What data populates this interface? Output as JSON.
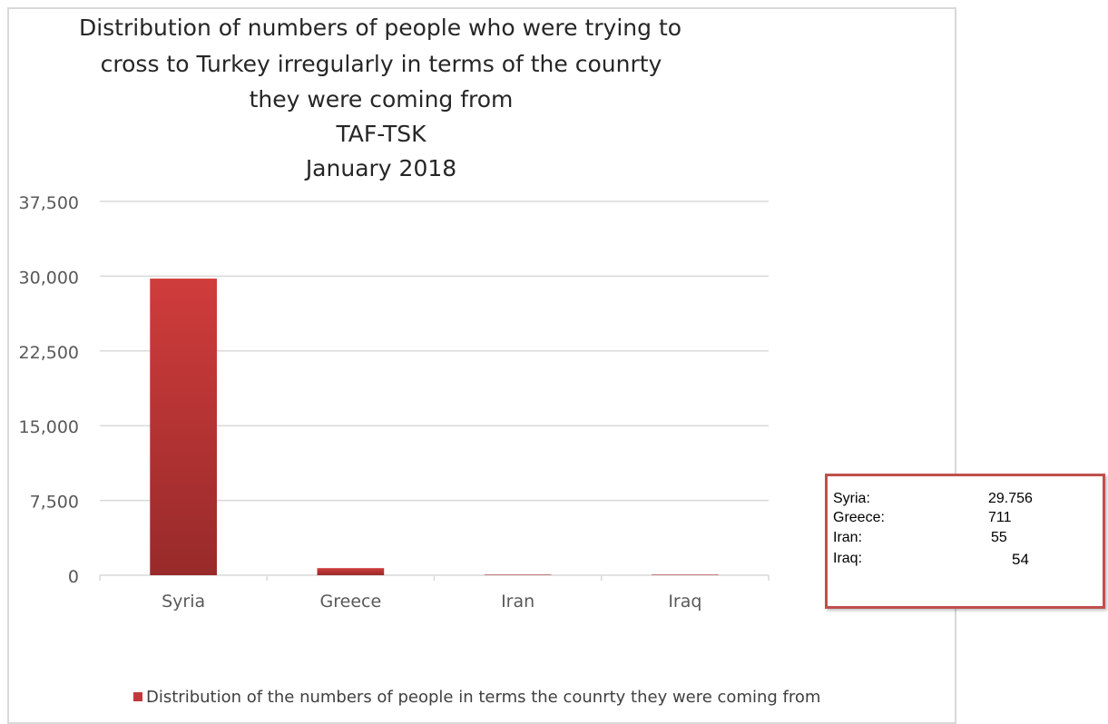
{
  "chart_data": {
    "type": "bar",
    "title_lines": [
      "Distribution of numbers of people who were trying to",
      "cross to Turkey irregularly in terms of the counrty",
      "they were coming from",
      "TAF-TSK",
      "January 2018"
    ],
    "categories": [
      "Syria",
      "Greece",
      "Iran",
      "Iraq"
    ],
    "series": [
      {
        "name": "Distribution of the numbers of people in terms the counrty they were coming from",
        "values": [
          29756,
          711,
          55,
          54
        ]
      }
    ],
    "ylim": [
      0,
      37500
    ],
    "yticks": [
      "0",
      "7,500",
      "15,000",
      "22,500",
      "30,000",
      "37,500"
    ],
    "ytick_values": [
      0,
      7500,
      15000,
      22500,
      30000,
      37500
    ],
    "grid": true,
    "legend_position": "bottom",
    "bar_color": "#c0393b"
  },
  "data_box": {
    "rows": [
      {
        "label": "Syria:",
        "value": "29.756"
      },
      {
        "label": "Greece:",
        "value": "711"
      },
      {
        "label": "Iran:",
        "value": "55"
      },
      {
        "label": "Iraq:",
        "value": "54"
      }
    ]
  }
}
